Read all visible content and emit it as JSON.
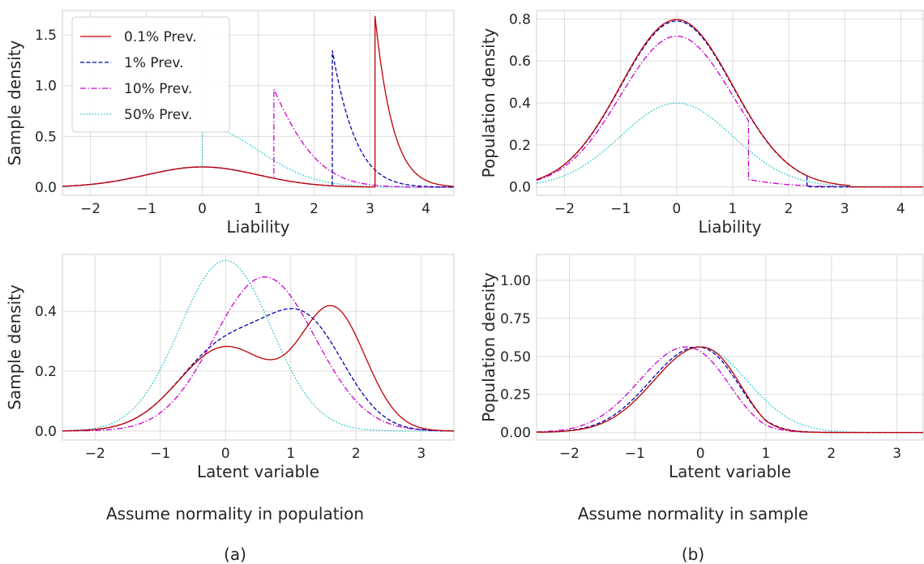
{
  "figure": {
    "caption_left": "Assume normality in population",
    "caption_right": "Assume normality in sample",
    "label_left": "(a)",
    "label_right": "(b)"
  },
  "legend": [
    {
      "name": "0.1% Prev.",
      "color": "#c00000",
      "dash": "solid"
    },
    {
      "name": "1% Prev.",
      "color": "#0000aa",
      "dash": "dashed"
    },
    {
      "name": "10% Prev.",
      "color": "#cc00cc",
      "dash": "dashdot"
    },
    {
      "name": "50% Prev.",
      "color": "#22c4cc",
      "dash": "dotted"
    }
  ],
  "chart_data": [
    {
      "type": "line",
      "id": "top-left",
      "xlabel": "Liability",
      "ylabel": "Sample density",
      "xlim": [
        -2.5,
        4.5
      ],
      "ylim": [
        -0.08,
        1.74
      ],
      "xticks": [
        -2,
        -1,
        0,
        1,
        2,
        3,
        4
      ],
      "yticks": [
        0.0,
        0.5,
        1.0,
        1.5
      ],
      "ytick_format": 1,
      "grid": true,
      "legend_position": "top-left",
      "series": [
        {
          "name": "0.1% Prev.",
          "kind": "truncated",
          "threshold": 3.09,
          "prevalence": 0.001
        },
        {
          "name": "1% Prev.",
          "kind": "truncated",
          "threshold": 2.326,
          "prevalence": 0.01
        },
        {
          "name": "10% Prev.",
          "kind": "truncated",
          "threshold": 1.2816,
          "prevalence": 0.1
        },
        {
          "name": "50% Prev.",
          "kind": "truncated",
          "threshold": 0.0,
          "prevalence": 0.5
        }
      ]
    },
    {
      "type": "line",
      "id": "top-right",
      "xlabel": "Liability",
      "ylabel": "Population density",
      "xlim": [
        -2.5,
        4.4
      ],
      "ylim": [
        -0.04,
        0.84
      ],
      "xticks": [
        -2,
        -1,
        0,
        1,
        2,
        3,
        4
      ],
      "yticks": [
        0.0,
        0.2,
        0.4,
        0.6,
        0.8
      ],
      "ytick_format": 1,
      "grid": true,
      "series": [
        {
          "name": "0.1% Prev.",
          "kind": "popmix",
          "threshold": 3.09,
          "prevalence": 0.001
        },
        {
          "name": "1% Prev.",
          "kind": "popmix",
          "threshold": 2.326,
          "prevalence": 0.01
        },
        {
          "name": "10% Prev.",
          "kind": "popmix",
          "threshold": 1.2816,
          "prevalence": 0.1
        },
        {
          "name": "50% Prev.",
          "kind": "popmix",
          "threshold": 0.0,
          "prevalence": 0.5
        }
      ]
    },
    {
      "type": "line",
      "id": "bottom-left",
      "xlabel": "Latent variable",
      "ylabel": "Sample density",
      "xlim": [
        -2.5,
        3.5
      ],
      "ylim": [
        -0.03,
        0.59
      ],
      "xticks": [
        -2,
        -1,
        0,
        1,
        2,
        3
      ],
      "yticks": [
        0.0,
        0.2,
        0.4
      ],
      "ytick_format": 1,
      "grid": true,
      "series": [
        {
          "name": "0.1% Prev.",
          "kind": "gauss",
          "components": [
            {
              "w": 0.5,
              "m": 0.0,
              "s": 0.71
            },
            {
              "w": 0.5,
              "m": 1.65,
              "s": 0.5
            }
          ]
        },
        {
          "name": "1% Prev.",
          "kind": "gauss",
          "components": [
            {
              "w": 0.5,
              "m": 0.0,
              "s": 0.71
            },
            {
              "w": 0.5,
              "m": 1.25,
              "s": 0.6
            }
          ]
        },
        {
          "name": "10% Prev.",
          "kind": "gauss",
          "components": [
            {
              "w": 1.0,
              "m": 0.6,
              "s": 0.775
            }
          ]
        },
        {
          "name": "50% Prev.",
          "kind": "gauss",
          "components": [
            {
              "w": 1.0,
              "m": 0.0,
              "s": 0.7
            }
          ]
        }
      ]
    },
    {
      "type": "line",
      "id": "bottom-right",
      "xlabel": "Latent variable",
      "ylabel": "Population density",
      "xlim": [
        -2.5,
        3.4
      ],
      "ylim": [
        -0.05,
        1.17
      ],
      "xticks": [
        -2,
        -1,
        0,
        1,
        2,
        3
      ],
      "yticks": [
        0.0,
        0.25,
        0.5,
        0.75,
        1.0
      ],
      "ytick_format": 2,
      "grid": true,
      "series": [
        {
          "name": "0.1% Prev.",
          "kind": "gauss",
          "components": [
            {
              "w": 1.0,
              "m": 0.0,
              "s": 0.71
            }
          ],
          "taper": {
            "start": 0.0,
            "end": 1.0,
            "m": 0.0,
            "s": 0.5
          }
        },
        {
          "name": "1% Prev.",
          "kind": "gauss",
          "components": [
            {
              "w": 1.0,
              "m": -0.05,
              "s": 0.71
            }
          ],
          "taper": {
            "start": -0.05,
            "end": 1.0,
            "m": -0.05,
            "s": 0.53
          }
        },
        {
          "name": "10% Prev.",
          "kind": "gauss",
          "components": [
            {
              "w": 1.0,
              "m": -0.22,
              "s": 0.71
            }
          ],
          "taper": {
            "start": -0.22,
            "end": 1.0,
            "m": -0.22,
            "s": 0.55
          }
        },
        {
          "name": "50% Prev.",
          "kind": "gauss",
          "components": [
            {
              "w": 1.0,
              "m": 0.0,
              "s": 0.71
            }
          ]
        }
      ]
    }
  ]
}
